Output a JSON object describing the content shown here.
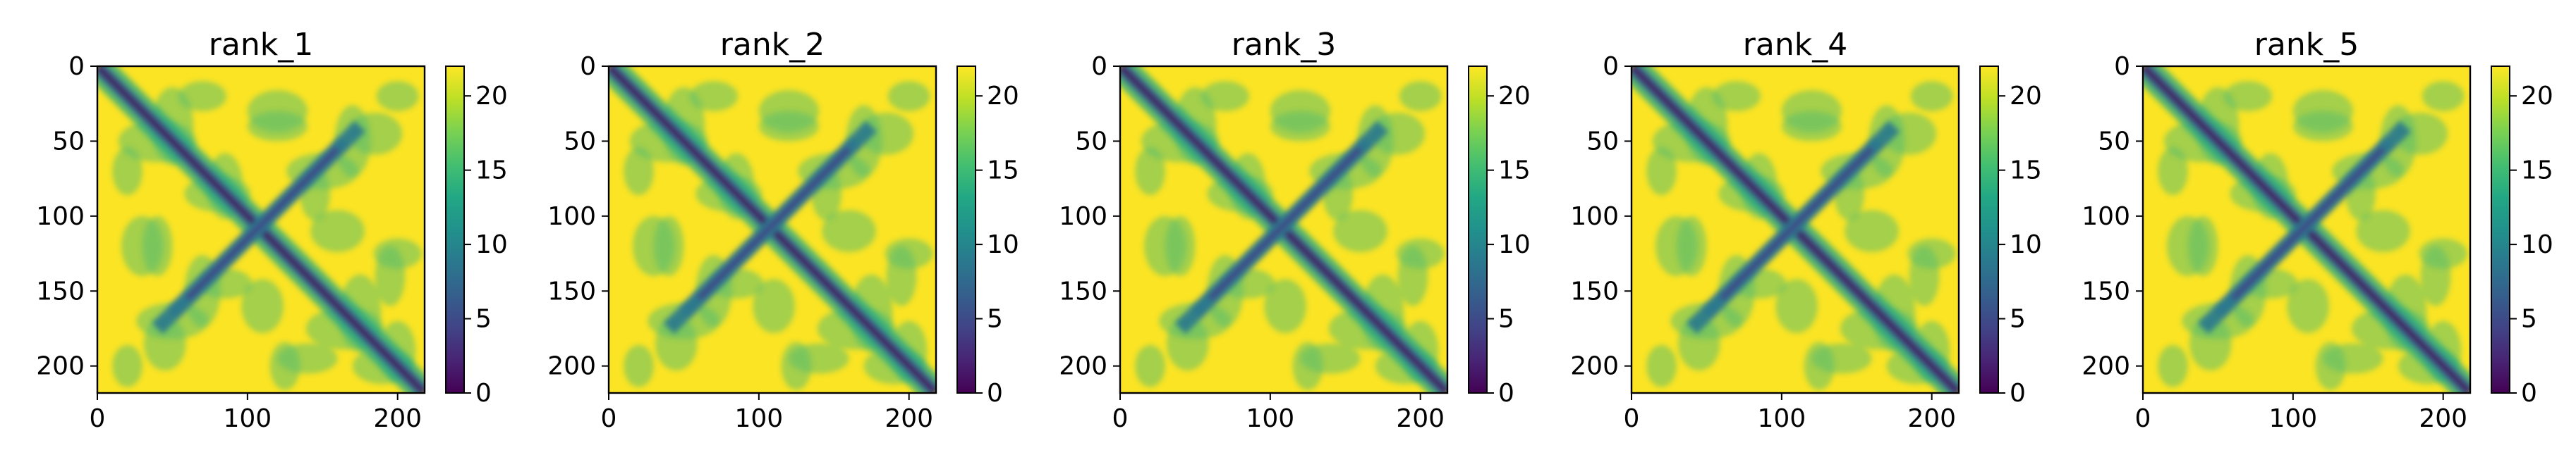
{
  "chart_data": [
    {
      "type": "heatmap",
      "title": "rank_1",
      "x_ticks": [
        0,
        100,
        200
      ],
      "y_ticks": [
        0,
        50,
        100,
        150,
        200
      ],
      "xlim": [
        0,
        218
      ],
      "ylim": [
        218,
        0
      ],
      "colorbar": {
        "ticks": [
          0,
          5,
          10,
          15,
          20
        ],
        "range": [
          0,
          22
        ],
        "colormap": "viridis"
      }
    },
    {
      "type": "heatmap",
      "title": "rank_2",
      "x_ticks": [
        0,
        100,
        200
      ],
      "y_ticks": [
        0,
        50,
        100,
        150,
        200
      ],
      "xlim": [
        0,
        218
      ],
      "ylim": [
        218,
        0
      ],
      "colorbar": {
        "ticks": [
          0,
          5,
          10,
          15,
          20
        ],
        "range": [
          0,
          22
        ],
        "colormap": "viridis"
      }
    },
    {
      "type": "heatmap",
      "title": "rank_3",
      "x_ticks": [
        0,
        100,
        200
      ],
      "y_ticks": [
        0,
        50,
        100,
        150,
        200
      ],
      "xlim": [
        0,
        218
      ],
      "ylim": [
        218,
        0
      ],
      "colorbar": {
        "ticks": [
          0,
          5,
          10,
          15,
          20
        ],
        "range": [
          0,
          22
        ],
        "colormap": "viridis"
      }
    },
    {
      "type": "heatmap",
      "title": "rank_4",
      "x_ticks": [
        0,
        100,
        200
      ],
      "y_ticks": [
        0,
        50,
        100,
        150,
        200
      ],
      "xlim": [
        0,
        218
      ],
      "ylim": [
        218,
        0
      ],
      "colorbar": {
        "ticks": [
          0,
          5,
          10,
          15,
          20
        ],
        "range": [
          0,
          22
        ],
        "colormap": "viridis"
      }
    },
    {
      "type": "heatmap",
      "title": "rank_5",
      "x_ticks": [
        0,
        100,
        200
      ],
      "y_ticks": [
        0,
        50,
        100,
        150,
        200
      ],
      "xlim": [
        0,
        218
      ],
      "ylim": [
        218,
        0
      ],
      "colorbar": {
        "ticks": [
          0,
          5,
          10,
          15,
          20
        ],
        "range": [
          0,
          22
        ],
        "colormap": "viridis"
      }
    }
  ]
}
